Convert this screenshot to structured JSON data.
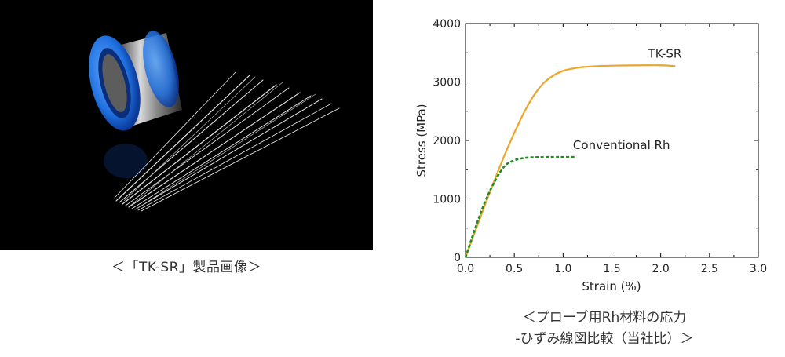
{
  "photo": {
    "caption": "＜「TK-SR」製品画像＞"
  },
  "chart_caption": {
    "line1": "＜プローブ用Rh材料の応力",
    "line2": "-ひずみ線図比較（当社比）＞"
  },
  "colors": {
    "tk_sr": "#eda52a",
    "conventional": "#1e8c1e",
    "spool_blue": "#1f6fe0",
    "axis": "#000000"
  },
  "chart_data": {
    "type": "line",
    "xlabel": "Strain (%)",
    "ylabel": "Stress (MPa)",
    "xlim": [
      0,
      3.0
    ],
    "ylim": [
      0,
      4000
    ],
    "xticks": [
      "0.0",
      "0.5",
      "1.0",
      "1.5",
      "2.0",
      "2.5",
      "3.0"
    ],
    "yticks": [
      "0",
      "1000",
      "2000",
      "3000",
      "4000"
    ],
    "grid": false,
    "series": [
      {
        "name": "TK-SR",
        "style": "solid",
        "x": [
          0.0,
          0.1,
          0.2,
          0.3,
          0.4,
          0.5,
          0.6,
          0.7,
          0.8,
          0.9,
          1.0,
          1.1,
          1.2,
          1.4,
          1.6,
          1.8,
          2.0,
          2.15
        ],
        "y": [
          0,
          450,
          900,
          1330,
          1750,
          2130,
          2480,
          2770,
          2980,
          3110,
          3190,
          3230,
          3255,
          3275,
          3282,
          3285,
          3285,
          3270
        ]
      },
      {
        "name": "Conventional Rh",
        "style": "dashed",
        "x": [
          0.0,
          0.1,
          0.2,
          0.3,
          0.4,
          0.5,
          0.6,
          0.7,
          0.8,
          0.9,
          1.0,
          1.13
        ],
        "y": [
          0,
          500,
          950,
          1300,
          1560,
          1660,
          1700,
          1712,
          1715,
          1715,
          1715,
          1715
        ]
      }
    ]
  }
}
